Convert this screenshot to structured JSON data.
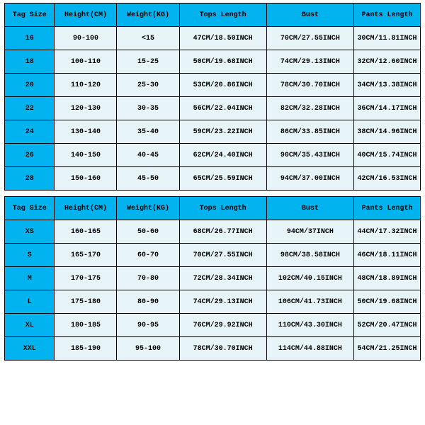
{
  "colors": {
    "header_bg": "#00b3ee",
    "tag_bg": "#00b3ee",
    "cell_bg": "#e6f3f7",
    "border": "#000000",
    "text": "#000000",
    "page_bg": "#ffffff"
  },
  "typography": {
    "font_family": "Courier New",
    "font_size_pt": 8,
    "font_weight": "bold"
  },
  "table_top": {
    "type": "table",
    "columns": [
      "Tag Size",
      "Height(CM)",
      "Weight(KG)",
      "Tops Length",
      "Bust",
      "Pants Length"
    ],
    "col_widths_pct": [
      12,
      15,
      15,
      21,
      21,
      16
    ],
    "rows": [
      [
        "16",
        "90-100",
        "<15",
        "47CM/18.50INCH",
        "70CM/27.55INCH",
        "30CM/11.81INCH"
      ],
      [
        "18",
        "100-110",
        "15-25",
        "50CM/19.68INCH",
        "74CM/29.13INCH",
        "32CM/12.60INCH"
      ],
      [
        "20",
        "110-120",
        "25-30",
        "53CM/20.86INCH",
        "78CM/30.70INCH",
        "34CM/13.38INCH"
      ],
      [
        "22",
        "120-130",
        "30-35",
        "56CM/22.04INCH",
        "82CM/32.28INCH",
        "36CM/14.17INCH"
      ],
      [
        "24",
        "130-140",
        "35-40",
        "59CM/23.22INCH",
        "86CM/33.85INCH",
        "38CM/14.96INCH"
      ],
      [
        "26",
        "140-150",
        "40-45",
        "62CM/24.40INCH",
        "90CM/35.43INCH",
        "40CM/15.74INCH"
      ],
      [
        "28",
        "150-160",
        "45-50",
        "65CM/25.59INCH",
        "94CM/37.00INCH",
        "42CM/16.53INCH"
      ]
    ]
  },
  "table_bottom": {
    "type": "table",
    "columns": [
      "Tag Size",
      "Height(CM)",
      "Weight(KG)",
      "Tops Length",
      "Bust",
      "Pants Length"
    ],
    "col_widths_pct": [
      12,
      15,
      15,
      21,
      21,
      16
    ],
    "rows": [
      [
        "XS",
        "160-165",
        "50-60",
        "68CM/26.77INCH",
        "94CM/37INCH",
        "44CM/17.32INCH"
      ],
      [
        "S",
        "165-170",
        "60-70",
        "70CM/27.55INCH",
        "98CM/38.58INCH",
        "46CM/18.11INCH"
      ],
      [
        "M",
        "170-175",
        "70-80",
        "72CM/28.34INCH",
        "102CM/40.15INCH",
        "48CM/18.89INCH"
      ],
      [
        "L",
        "175-180",
        "80-90",
        "74CM/29.13INCH",
        "106CM/41.73INCH",
        "50CM/19.68INCH"
      ],
      [
        "XL",
        "180-185",
        "90-95",
        "76CM/29.92INCH",
        "110CM/43.30INCH",
        "52CM/20.47INCH"
      ],
      [
        "XXL",
        "185-190",
        "95-100",
        "78CM/30.70INCH",
        "114CM/44.88INCH",
        "54CM/21.25INCH"
      ]
    ]
  }
}
